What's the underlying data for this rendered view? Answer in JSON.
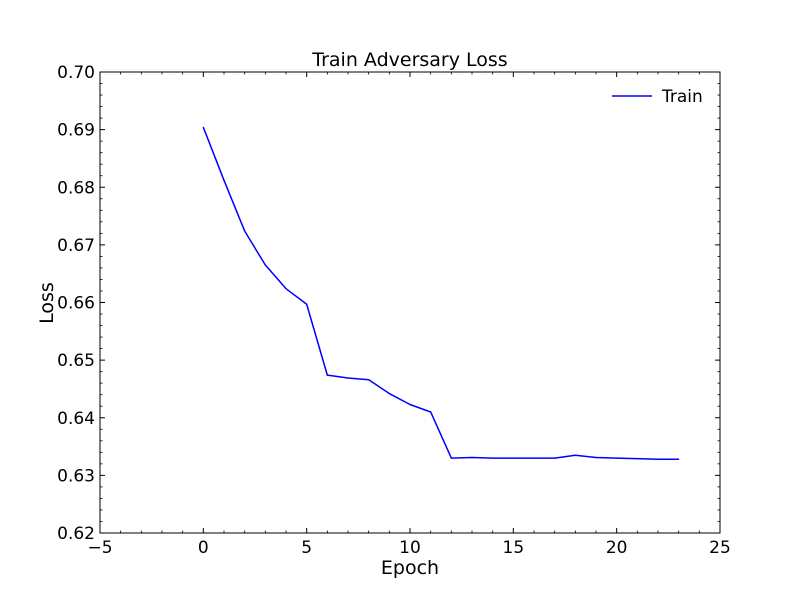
{
  "chart_data": {
    "type": "line",
    "title": "Train Adversary Loss",
    "xlabel": "Epoch",
    "ylabel": "Loss",
    "xlim": [
      -5,
      25
    ],
    "ylim": [
      0.62,
      0.7
    ],
    "xticks": [
      -5,
      0,
      5,
      10,
      15,
      20,
      25
    ],
    "xtick_labels": [
      "−5",
      "0",
      "5",
      "10",
      "15",
      "20",
      "25"
    ],
    "yticks": [
      0.62,
      0.63,
      0.64,
      0.65,
      0.66,
      0.67,
      0.68,
      0.69,
      0.7
    ],
    "ytick_labels": [
      "0.62",
      "0.63",
      "0.64",
      "0.65",
      "0.66",
      "0.67",
      "0.68",
      "0.69",
      "0.70"
    ],
    "grid": false,
    "legend_position": "top-right",
    "series": [
      {
        "name": "Train",
        "color": "#0000ff",
        "x": [
          0,
          1,
          2,
          3,
          4,
          5,
          6,
          7,
          8,
          9,
          10,
          11,
          12,
          13,
          14,
          15,
          16,
          17,
          18,
          19,
          20,
          21,
          22,
          23
        ],
        "y": [
          0.6904,
          0.6812,
          0.6724,
          0.6665,
          0.6624,
          0.6597,
          0.6474,
          0.6469,
          0.6466,
          0.6442,
          0.6423,
          0.641,
          0.633,
          0.6331,
          0.633,
          0.633,
          0.633,
          0.633,
          0.6335,
          0.6331,
          0.633,
          0.6329,
          0.6328,
          0.6328
        ]
      }
    ]
  }
}
